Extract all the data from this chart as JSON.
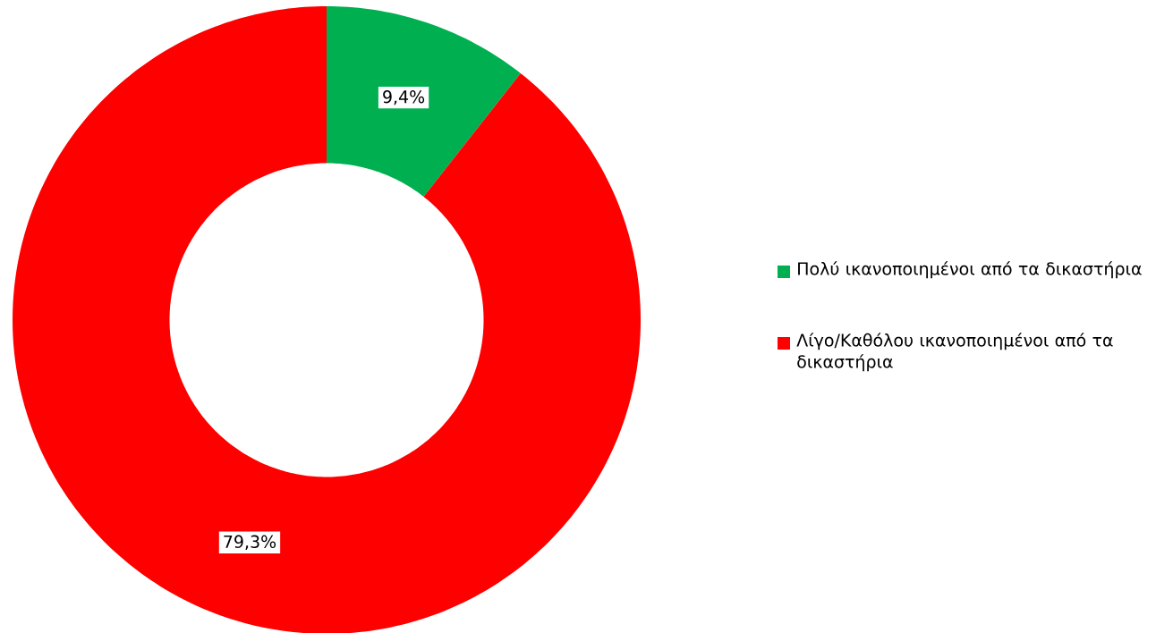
{
  "chart_data": {
    "type": "donut",
    "categories": [
      "Πολύ ικανοποιημένοι από τα δικαστήρια",
      "Λίγο/Καθόλου ικανοποιημένοι από τα δικαστήρια"
    ],
    "values": [
      9.4,
      79.3
    ],
    "colors": [
      "#00b050",
      "#ff0000"
    ],
    "value_labels": [
      "9,4%",
      "79,3%"
    ],
    "legend": "right"
  }
}
